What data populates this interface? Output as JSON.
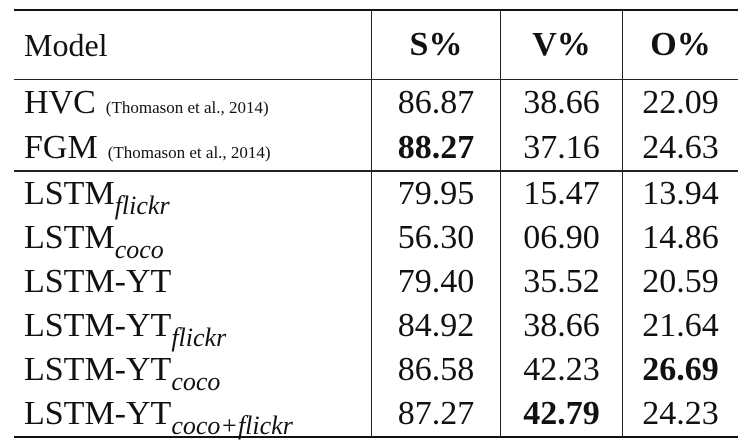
{
  "header": {
    "model": "Model",
    "s": "S%",
    "v": "V%",
    "o": "O%"
  },
  "rows": [
    {
      "name": "HVC",
      "cite": "(Thomason et al., 2014)",
      "sub": "",
      "s": "86.87",
      "v": "38.66",
      "o": "22.09",
      "bold": ""
    },
    {
      "name": "FGM",
      "cite": "(Thomason et al., 2014)",
      "sub": "",
      "s": "88.27",
      "v": "37.16",
      "o": "24.63",
      "bold": "s"
    },
    {
      "name": "LSTM",
      "cite": "",
      "sub": "flickr",
      "s": "79.95",
      "v": "15.47",
      "o": "13.94",
      "bold": ""
    },
    {
      "name": "LSTM",
      "cite": "",
      "sub": "coco",
      "s": "56.30",
      "v": "06.90",
      "o": "14.86",
      "bold": ""
    },
    {
      "name": "LSTM-YT",
      "cite": "",
      "sub": "",
      "s": "79.40",
      "v": "35.52",
      "o": "20.59",
      "bold": ""
    },
    {
      "name": "LSTM-YT",
      "cite": "",
      "sub": "flickr",
      "s": "84.92",
      "v": "38.66",
      "o": "21.64",
      "bold": ""
    },
    {
      "name": "LSTM-YT",
      "cite": "",
      "sub": "coco",
      "s": "86.58",
      "v": "42.23",
      "o": "26.69",
      "bold": "o"
    },
    {
      "name": "LSTM-YT",
      "cite": "",
      "sub": "coco+flickr",
      "s": "87.27",
      "v": "42.79",
      "o": "24.23",
      "bold": "v"
    }
  ]
}
